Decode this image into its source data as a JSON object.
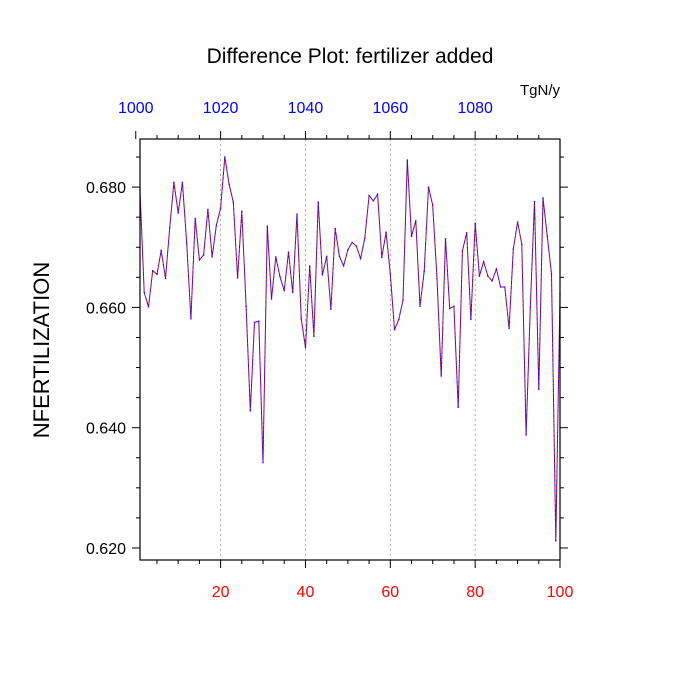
{
  "chart_data": {
    "type": "line",
    "title": "Difference Plot: fertilizer added",
    "ylabel": "NFERTILIZATION",
    "units_label": "TgN/y",
    "xlim": [
      1,
      100
    ],
    "ylim": [
      0.618,
      0.688
    ],
    "bottom_axis": {
      "ticks": [
        20,
        40,
        60,
        80,
        100
      ],
      "color": "#ff0000"
    },
    "top_axis": {
      "ticks": [
        1000,
        1020,
        1040,
        1060,
        1080
      ],
      "offset": 1000,
      "color": "#0000ff"
    },
    "y_ticks": [
      "0.620",
      "0.640",
      "0.660",
      "0.680"
    ],
    "grid": "vertical dotted at labeled x ticks",
    "series": [
      {
        "line_colors": [
          "#ff0000",
          "#0000ff"
        ],
        "x": [
          1,
          2,
          3,
          4,
          5,
          6,
          7,
          8,
          9,
          10,
          11,
          12,
          13,
          14,
          15,
          16,
          17,
          18,
          19,
          20,
          21,
          22,
          23,
          24,
          25,
          26,
          27,
          28,
          29,
          30,
          31,
          32,
          33,
          34,
          35,
          36,
          37,
          38,
          39,
          40,
          41,
          42,
          43,
          44,
          45,
          46,
          47,
          48,
          49,
          50,
          51,
          52,
          53,
          54,
          55,
          56,
          57,
          58,
          59,
          60,
          61,
          62,
          63,
          64,
          65,
          66,
          67,
          68,
          69,
          70,
          71,
          72,
          73,
          74,
          75,
          76,
          77,
          78,
          79,
          80,
          81,
          82,
          83,
          84,
          85,
          86,
          87,
          88,
          89,
          90,
          91,
          92,
          93,
          94,
          95,
          96,
          97,
          98,
          99,
          100
        ],
        "values": [
          0.6795,
          0.6625,
          0.6601,
          0.6661,
          0.6655,
          0.6695,
          0.6648,
          0.6732,
          0.6808,
          0.6757,
          0.6808,
          0.6707,
          0.6581,
          0.6748,
          0.6679,
          0.6687,
          0.6763,
          0.6684,
          0.6737,
          0.6765,
          0.685,
          0.6805,
          0.6775,
          0.6649,
          0.676,
          0.6602,
          0.6428,
          0.6575,
          0.6577,
          0.6342,
          0.6735,
          0.6614,
          0.6684,
          0.6651,
          0.6628,
          0.6692,
          0.6625,
          0.6755,
          0.6582,
          0.6533,
          0.6669,
          0.6552,
          0.6775,
          0.6654,
          0.6685,
          0.6597,
          0.6731,
          0.6685,
          0.6669,
          0.6696,
          0.6708,
          0.6702,
          0.6681,
          0.6715,
          0.6786,
          0.6777,
          0.6788,
          0.6683,
          0.6725,
          0.6656,
          0.6563,
          0.658,
          0.6612,
          0.6845,
          0.6718,
          0.6744,
          0.6602,
          0.666,
          0.68,
          0.677,
          0.6648,
          0.6486,
          0.6714,
          0.6598,
          0.6602,
          0.6434,
          0.6694,
          0.6724,
          0.658,
          0.674,
          0.6652,
          0.6676,
          0.6652,
          0.6644,
          0.6664,
          0.6634,
          0.6634,
          0.6565,
          0.6697,
          0.6742,
          0.6705,
          0.6388,
          0.66,
          0.6776,
          0.6464,
          0.6782,
          0.6718,
          0.6656,
          0.6212,
          0.6622
        ]
      }
    ]
  }
}
